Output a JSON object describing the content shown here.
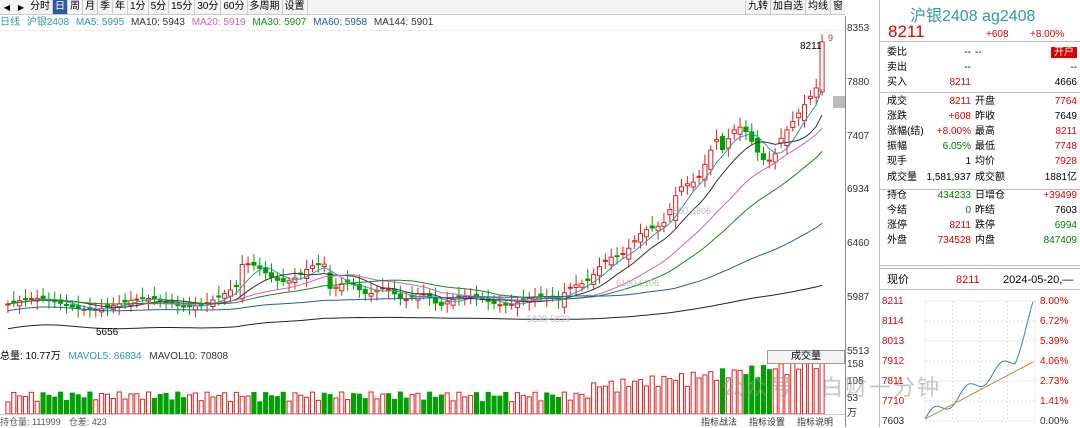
{
  "periods": [
    "分时",
    "日",
    "周",
    "月",
    "季",
    "年",
    "1分",
    "5分",
    "15分",
    "30分",
    "60分",
    "多周期",
    "设置"
  ],
  "active_period": "日",
  "right_tools": [
    "九转",
    "加自选",
    "均线",
    "窗"
  ],
  "ma_line": {
    "tag": "日线",
    "sym": "沪银2408",
    "ma5": "MA5: 5995",
    "ma10": "MA10: 5943",
    "ma20": "MA20: 5919",
    "ma30": "MA30: 5907",
    "ma60": "MA60: 5958",
    "ma144": "MA144: 5901"
  },
  "y_labels": [
    "8353",
    "7880",
    "7407",
    "6934",
    "6460",
    "5987",
    "5513",
    "158",
    "105",
    "53",
    "万"
  ],
  "chart_annot": {
    "hi": "8211",
    "nine": "9",
    "lo": "5656",
    "r1": "6500-6806",
    "r2": "6160-6106",
    "r3": "5838-5839"
  },
  "vol_line": {
    "total": "总量: 10.77万",
    "mavol5": "MAVOL5: 86834",
    "mavol10": "MAVOL10: 70808"
  },
  "vol_dropdown": "成交量",
  "footer": {
    "oi": "持仓量: 111999",
    "diff": "仓差: 423",
    "btns": [
      "指标战法",
      "指标设置",
      "指标说明"
    ]
  },
  "title": "沪银2408 ag2408",
  "price": "8211",
  "change": "+608",
  "pct": "+8.00%",
  "rows": [
    {
      "l": "委比",
      "v": "--",
      "l2": "--",
      "v2": "开户"
    },
    {
      "l": "卖出",
      "v": "--",
      "l2": "",
      "v2": "--"
    },
    {
      "l": "买入",
      "v": "8211",
      "l2": "",
      "v2": "4666"
    },
    {
      "l": "成交",
      "v": "8211",
      "l2": "开盘",
      "v2": "7764"
    },
    {
      "l": "涨跌",
      "v": "+608",
      "l2": "昨收",
      "v2": "7649"
    },
    {
      "l": "涨幅(结)",
      "v": "+8.00%",
      "l2": "最高",
      "v2": "8211"
    },
    {
      "l": "振幅",
      "v": "6.05%",
      "l2": "最低",
      "v2": "7748"
    },
    {
      "l": "现手",
      "v": "1",
      "l2": "均价",
      "v2": "7928"
    },
    {
      "l": "成交量",
      "v": "1,581,937",
      "l2": "成交额",
      "v2": "1881亿"
    },
    {
      "l": "持仓",
      "v": "434233",
      "l2": "日增仓",
      "v2": "+39499"
    },
    {
      "l": "今结",
      "v": "0",
      "l2": "昨结",
      "v2": "7603"
    },
    {
      "l": "涨停",
      "v": "8211",
      "l2": "跌停",
      "v2": "6994"
    },
    {
      "l": "外盘",
      "v": "734528",
      "l2": "内盘",
      "v2": "847409"
    }
  ],
  "tl": {
    "label": "现价",
    "price": "8211",
    "date": "2024-05-20,—"
  },
  "mini_left": [
    "8211",
    "8114",
    "8013",
    "7912",
    "7811",
    "7710",
    "7603"
  ],
  "mini_right": [
    "8.00%",
    "6.72%",
    "5.39%",
    "4.06%",
    "2.73%",
    "1.41%",
    "0.00%"
  ],
  "watermark": "公众号 · 白财一分钟",
  "chart_data": {
    "type": "candlestick",
    "ylim": [
      5513,
      8353
    ],
    "last_close": 8211,
    "low_label": 5656
  }
}
